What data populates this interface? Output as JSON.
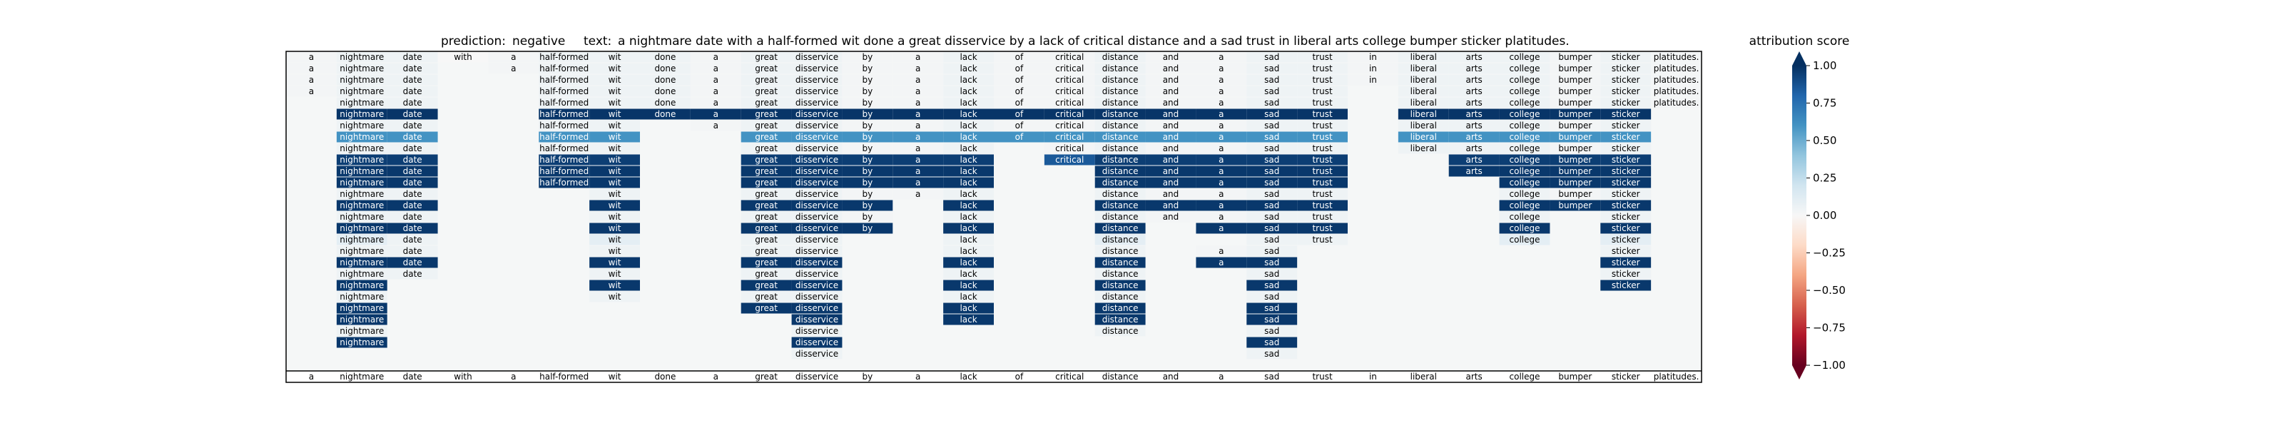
{
  "header": {
    "prediction_label": "prediction:",
    "prediction": "negative",
    "text_label": "text:",
    "text": "a nightmare date with a half-formed wit done a great disservice by a lack of critical distance and a sad trust in liberal arts college bumper sticker platitudes."
  },
  "chart_data": {
    "type": "heatmap",
    "tokens": [
      "a",
      "nightmare",
      "date",
      "with",
      "a",
      "half-formed",
      "wit",
      "done",
      "a",
      "great",
      "disservice",
      "by",
      "a",
      "lack",
      "of",
      "critical",
      "distance",
      "and",
      "a",
      "sad",
      "trust",
      "in",
      "liberal",
      "arts",
      "college",
      "bumper",
      "sticker",
      "platitudes."
    ],
    "rows": [
      {
        "start": 0,
        "end": 27,
        "scores": {
          "0": 0.02,
          "1": 0.05,
          "2": 0.05,
          "3": 0,
          "4": 0.02,
          "5": 0.05,
          "6": 0.05,
          "7": 0.05,
          "8": 0.02,
          "9": 0.05,
          "10": 0.05,
          "11": 0.02,
          "12": 0.02,
          "13": 0.05,
          "14": 0.02,
          "15": 0.02,
          "16": 0.05,
          "17": 0.02,
          "18": 0.02,
          "19": 0.05,
          "20": 0.05,
          "21": 0.02,
          "22": 0.05,
          "23": 0.05,
          "24": 0.05,
          "25": 0.02,
          "26": 0.05,
          "27": 0.02
        }
      },
      {
        "start": 0,
        "end": 27,
        "scores": {
          "0": 0.02,
          "1": 0.05,
          "2": 0.05,
          "4": 0.02,
          "5": 0.05,
          "6": 0.05,
          "7": 0.05,
          "8": 0.02,
          "9": 0.05,
          "10": 0.05,
          "11": 0.02,
          "12": 0.02,
          "13": 0.05,
          "14": 0.02,
          "15": 0.02,
          "16": 0.05,
          "17": 0.02,
          "18": 0.02,
          "19": 0.05,
          "20": 0.05,
          "21": 0.02,
          "22": 0.05,
          "23": 0.05,
          "24": 0.05,
          "25": 0.02,
          "26": 0.05,
          "27": 0.02
        }
      },
      {
        "start": 0,
        "end": 27,
        "scores": {
          "0": 0.02,
          "1": 0.05,
          "2": 0.05,
          "5": 0.05,
          "6": 0.05,
          "7": 0.05,
          "8": 0.02,
          "9": 0.05,
          "10": 0.05,
          "11": 0.02,
          "12": 0.02,
          "13": 0.05,
          "14": 0.02,
          "15": 0.02,
          "16": 0.05,
          "17": 0.02,
          "18": 0.02,
          "19": 0.05,
          "20": 0.05,
          "21": 0.02,
          "22": 0.05,
          "23": 0.05,
          "24": 0.05,
          "25": 0.02,
          "26": 0.05,
          "27": 0.02
        }
      },
      {
        "start": 0,
        "end": 27,
        "scores": {
          "0": 0.02,
          "1": 0.05,
          "2": 0.05,
          "5": 0.05,
          "6": 0.05,
          "7": 0.05,
          "8": 0.02,
          "9": 0.05,
          "10": 0.05,
          "11": 0.02,
          "12": 0.02,
          "13": 0.05,
          "14": 0.02,
          "15": 0.02,
          "16": 0.05,
          "17": 0.02,
          "18": 0.02,
          "19": 0.05,
          "20": 0.05,
          "22": 0.05,
          "23": 0.05,
          "24": 0.05,
          "25": 0.02,
          "26": 0.05,
          "27": 0.02
        }
      },
      {
        "start": 0,
        "end": 27,
        "scores": {
          "1": 0.05,
          "2": 0.05,
          "5": 0.05,
          "6": 0.05,
          "7": 0.05,
          "8": 0.02,
          "9": 0.05,
          "10": 0.05,
          "11": 0.02,
          "12": 0.02,
          "13": 0.05,
          "14": 0.02,
          "15": 0.02,
          "16": 0.05,
          "17": 0.02,
          "18": 0.02,
          "19": 0.05,
          "20": 0.05,
          "22": 0.05,
          "23": 0.05,
          "24": 0.05,
          "25": 0.02,
          "26": 0.05,
          "27": 0.02
        }
      },
      {
        "start": 0,
        "end": 27,
        "scores": {
          "1": 0.98,
          "2": 0.98,
          "5": 0.98,
          "6": 0.98,
          "7": 0.98,
          "8": 0.98,
          "9": 0.98,
          "10": 0.98,
          "11": 0.98,
          "12": 0.98,
          "13": 0.98,
          "14": 0.98,
          "15": 0.98,
          "16": 0.98,
          "17": 0.98,
          "18": 0.98,
          "19": 0.98,
          "20": 0.98,
          "22": 0.98,
          "23": 0.98,
          "24": 0.98,
          "25": 0.98,
          "26": 0.98
        }
      },
      {
        "start": 0,
        "end": 27,
        "scores": {
          "1": 0.05,
          "2": 0.05,
          "5": 0.05,
          "6": 0.05,
          "8": 0.02,
          "9": 0.05,
          "10": 0.05,
          "11": 0.02,
          "12": 0.02,
          "13": 0.05,
          "14": 0.02,
          "15": 0.02,
          "16": 0.05,
          "17": 0.02,
          "18": 0.02,
          "19": 0.05,
          "20": 0.05,
          "22": 0.05,
          "23": 0.05,
          "24": 0.05,
          "25": 0.02,
          "26": 0.05
        }
      },
      {
        "start": 0,
        "end": 27,
        "scores": {
          "1": 0.6,
          "2": 0.6,
          "5": 0.6,
          "6": 0.6,
          "9": 0.6,
          "10": 0.6,
          "11": 0.6,
          "12": 0.6,
          "13": 0.6,
          "14": 0.6,
          "15": 0.6,
          "16": 0.6,
          "17": 0.6,
          "18": 0.6,
          "19": 0.6,
          "20": 0.6,
          "22": 0.6,
          "23": 0.6,
          "24": 0.6,
          "25": 0.6,
          "26": 0.6
        }
      },
      {
        "start": 0,
        "end": 27,
        "scores": {
          "1": 0.05,
          "2": 0.05,
          "5": 0.05,
          "6": 0.05,
          "9": 0.05,
          "10": 0.05,
          "11": 0.02,
          "12": 0.02,
          "13": 0.05,
          "15": 0.02,
          "16": 0.05,
          "17": 0.02,
          "18": 0.02,
          "19": 0.05,
          "20": 0.05,
          "22": 0.05,
          "23": 0.05,
          "24": 0.05,
          "25": 0.02,
          "26": 0.05
        }
      },
      {
        "start": 0,
        "end": 27,
        "scores": {
          "1": 0.95,
          "2": 0.95,
          "5": 0.95,
          "6": 0.95,
          "9": 0.95,
          "10": 0.95,
          "11": 0.95,
          "12": 0.95,
          "13": 0.95,
          "15": 0.85,
          "16": 0.95,
          "17": 0.95,
          "18": 0.95,
          "19": 0.95,
          "20": 0.95,
          "23": 0.95,
          "24": 0.95,
          "25": 0.95,
          "26": 0.95
        }
      },
      {
        "start": 0,
        "end": 27,
        "scores": {
          "1": 0.97,
          "2": 0.97,
          "5": 0.97,
          "6": 0.97,
          "9": 0.97,
          "10": 0.97,
          "11": 0.97,
          "12": 0.97,
          "13": 0.97,
          "16": 0.97,
          "17": 0.97,
          "18": 0.97,
          "19": 0.97,
          "20": 0.97,
          "23": 0.97,
          "24": 0.97,
          "25": 0.97,
          "26": 0.97
        }
      },
      {
        "start": 0,
        "end": 27,
        "scores": {
          "1": 0.97,
          "2": 0.97,
          "5": 0.97,
          "6": 0.97,
          "9": 0.97,
          "10": 0.97,
          "11": 0.97,
          "12": 0.97,
          "13": 0.97,
          "16": 0.97,
          "17": 0.97,
          "18": 0.97,
          "19": 0.97,
          "20": 0.97,
          "24": 0.97,
          "25": 0.97,
          "26": 0.97
        }
      },
      {
        "start": 0,
        "end": 27,
        "scores": {
          "1": 0.05,
          "2": 0.05,
          "6": 0.05,
          "9": 0.05,
          "10": 0.05,
          "11": 0.02,
          "12": 0.02,
          "13": 0.05,
          "16": 0.05,
          "17": 0.02,
          "18": 0.02,
          "19": 0.05,
          "20": 0.05,
          "24": 0.05,
          "25": 0.02,
          "26": 0.05
        }
      },
      {
        "start": 0,
        "end": 27,
        "scores": {
          "1": 0.97,
          "2": 0.97,
          "6": 0.97,
          "9": 0.97,
          "10": 0.97,
          "11": 0.97,
          "13": 0.97,
          "16": 0.97,
          "17": 0.97,
          "18": 0.97,
          "19": 0.97,
          "20": 0.97,
          "24": 0.97,
          "25": 0.97,
          "26": 0.97
        }
      },
      {
        "start": 0,
        "end": 27,
        "scores": {
          "1": 0.05,
          "2": 0.05,
          "6": 0.05,
          "9": 0.05,
          "10": 0.05,
          "11": 0.02,
          "13": 0.05,
          "16": 0.05,
          "17": 0.02,
          "18": 0.02,
          "19": 0.05,
          "20": 0.05,
          "24": 0.05,
          "26": 0.05
        }
      },
      {
        "start": 0,
        "end": 27,
        "scores": {
          "1": 0.97,
          "2": 0.97,
          "6": 0.97,
          "9": 0.97,
          "10": 0.97,
          "11": 0.97,
          "13": 0.97,
          "16": 0.97,
          "18": 0.97,
          "19": 0.97,
          "20": 0.97,
          "24": 0.97,
          "26": 0.97
        }
      },
      {
        "start": 0,
        "end": 27,
        "scores": {
          "1": 0.1,
          "2": 0.05,
          "6": 0.1,
          "9": 0.05,
          "10": 0.05,
          "13": 0.05,
          "16": 0.1,
          "19": 0.05,
          "20": 0.05,
          "24": 0.1,
          "26": 0.1
        }
      },
      {
        "start": 0,
        "end": 27,
        "scores": {
          "1": 0.05,
          "2": 0.05,
          "6": 0.05,
          "9": 0.05,
          "10": 0.05,
          "13": 0.05,
          "16": 0.05,
          "18": 0.02,
          "19": 0.05,
          "26": 0.05
        }
      },
      {
        "start": 0,
        "end": 27,
        "scores": {
          "1": 0.97,
          "2": 0.97,
          "6": 0.97,
          "9": 0.97,
          "10": 0.97,
          "13": 0.97,
          "16": 0.97,
          "18": 0.97,
          "19": 0.97,
          "26": 0.97
        }
      },
      {
        "start": 0,
        "end": 27,
        "scores": {
          "1": 0.05,
          "2": 0.05,
          "6": 0.05,
          "9": 0.05,
          "10": 0.05,
          "13": 0.05,
          "16": 0.05,
          "19": 0.05,
          "26": 0.05
        }
      },
      {
        "start": 0,
        "end": 27,
        "scores": {
          "1": 0.97,
          "6": 0.97,
          "9": 0.97,
          "10": 0.97,
          "13": 0.97,
          "16": 0.97,
          "19": 0.97,
          "26": 0.97
        }
      },
      {
        "start": 0,
        "end": 27,
        "scores": {
          "1": 0.05,
          "6": 0.05,
          "9": 0.05,
          "10": 0.05,
          "13": 0.05,
          "16": 0.05,
          "19": 0.05
        }
      },
      {
        "start": 0,
        "end": 27,
        "scores": {
          "1": 0.97,
          "9": 0.97,
          "10": 0.97,
          "13": 0.97,
          "16": 0.97,
          "19": 0.97
        }
      },
      {
        "start": 0,
        "end": 27,
        "scores": {
          "1": 0.97,
          "10": 0.97,
          "13": 0.97,
          "16": 0.97,
          "19": 0.97
        }
      },
      {
        "start": 0,
        "end": 27,
        "scores": {
          "1": 0.05,
          "10": 0.05,
          "16": 0.05,
          "19": 0.05
        }
      },
      {
        "start": 0,
        "end": 27,
        "scores": {
          "1": 0.97,
          "10": 0.97,
          "19": 0.97
        }
      },
      {
        "start": 0,
        "end": 27,
        "scores": {
          "10": 0.05,
          "19": 0.05
        }
      }
    ],
    "colorbar": {
      "label": "attribution score",
      "vmin": -1.0,
      "vmax": 1.0,
      "ticks": [
        1.0,
        0.75,
        0.5,
        0.25,
        0.0,
        -0.25,
        -0.5,
        -0.75,
        -1.0
      ],
      "tick_labels": [
        "1.00",
        "0.75",
        "0.50",
        "0.25",
        "0.00",
        "−0.25",
        "−0.50",
        "−0.75",
        "−1.00"
      ],
      "colormap": "RdBu",
      "stops": [
        "#67001f",
        "#b2182b",
        "#d6604d",
        "#f4a582",
        "#fddbc7",
        "#f7f7f7",
        "#d1e5f0",
        "#92c5de",
        "#4393c3",
        "#2166ac",
        "#053061"
      ]
    },
    "background_color": "#f5f7f7"
  }
}
